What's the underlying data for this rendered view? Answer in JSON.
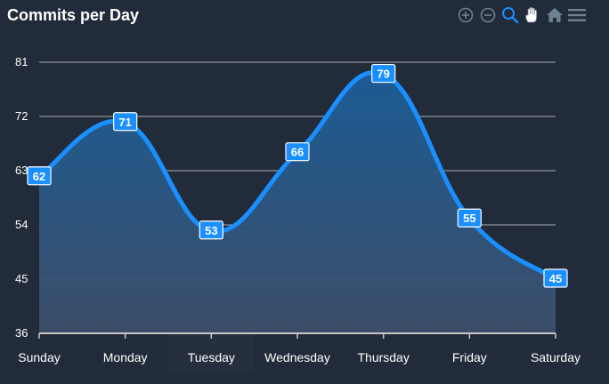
{
  "chart_data": {
    "type": "area",
    "title": "Commits per Day",
    "categories": [
      "Sunday",
      "Monday",
      "Tuesday",
      "Wednesday",
      "Thursday",
      "Friday",
      "Saturday"
    ],
    "series": [
      {
        "values": [
          62,
          71,
          53,
          66,
          79,
          55,
          45
        ]
      }
    ],
    "y_ticks": [
      "81",
      "72",
      "63",
      "54",
      "45",
      "36"
    ],
    "ylim": [
      36,
      81
    ],
    "grid": true,
    "data_labels": true,
    "colors": {
      "line": "#1a8fff",
      "area_top": "#1b5e99",
      "area_bottom": "#3d4f6a",
      "label_bg": "#1a8fff",
      "grid": "#d9d9d9",
      "background": "#222b39",
      "highlight_category": "Tuesday"
    }
  },
  "toolbar": {
    "icons": [
      "zoom-in-icon",
      "zoom-out-icon",
      "selection-zoom-icon",
      "pan-icon",
      "reset-home-icon",
      "menu-icon"
    ]
  }
}
